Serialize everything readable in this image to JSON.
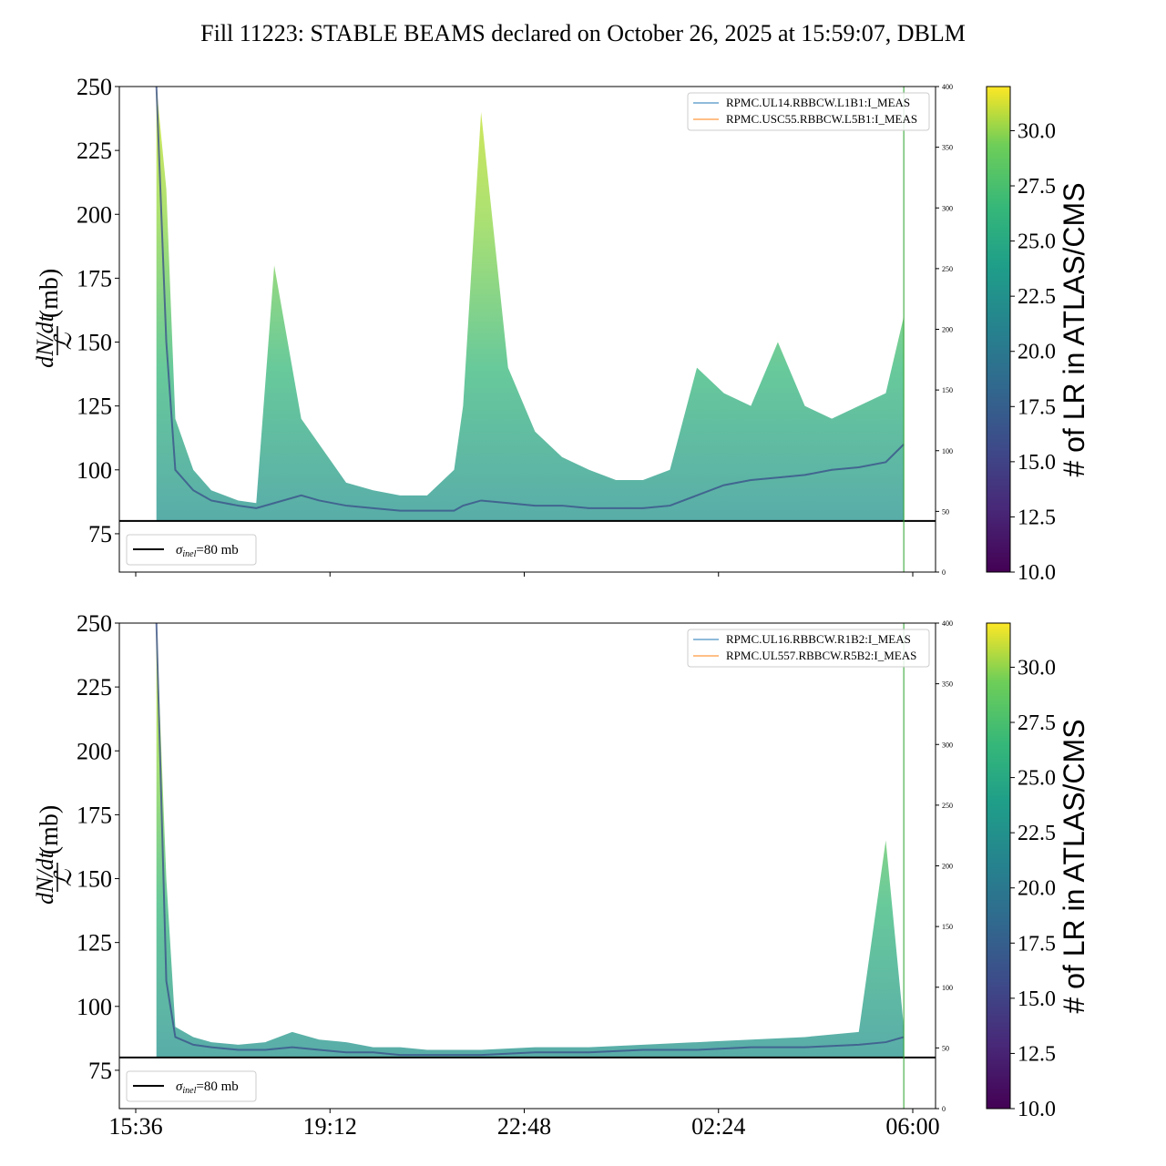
{
  "title": "Fill 11223: STABLE BEAMS declared on October 26, 2025 at 15:59:07, DBLM",
  "ylabel": {
    "numerator": "dN/dt",
    "denominator": "ℒ",
    "unit": "(mb)"
  },
  "colorbar": {
    "label": "# of LR in ATLAS/CMS",
    "ticks": [
      "10.0",
      "12.5",
      "15.0",
      "17.5",
      "20.0",
      "22.5",
      "25.0",
      "27.5",
      "30.0"
    ],
    "range": [
      10.0,
      32.0
    ],
    "colormap": "viridis"
  },
  "sigma_legend": {
    "label_prefix": "σ",
    "label_sub": "inel",
    "label_suffix": "=80 mb"
  },
  "colors": {
    "blue_series": "#1f77b4",
    "orange_series": "#ff7f0e",
    "green_vline": "#2ca02c",
    "reference": "#000000"
  },
  "chart_data": [
    {
      "type": "line",
      "panel": "top",
      "ylim": [
        60,
        250
      ],
      "yticks": [
        "75",
        "100",
        "125",
        "150",
        "175",
        "200",
        "225",
        "250"
      ],
      "y2lim": [
        0,
        400
      ],
      "y2ticks": [
        "0",
        "50",
        "100",
        "150",
        "200",
        "250",
        "300",
        "350",
        "400"
      ],
      "xticks": [
        "15:36",
        "19:12",
        "22:48",
        "02:24",
        "06:00"
      ],
      "show_xtick_labels": false,
      "reference_line": 80,
      "vertical_line_time": "05:50",
      "legend": [
        "RPMC.UL14.RBBCW.L1B1:I_MEAS",
        "RPMC.USC55.RBBCW.L5B1:I_MEAS"
      ],
      "series_baseline": {
        "x": [
          "15:59",
          "16:10",
          "16:20",
          "16:40",
          "17:00",
          "17:30",
          "17:50",
          "18:10",
          "18:40",
          "19:00",
          "19:30",
          "20:00",
          "20:30",
          "21:00",
          "21:30",
          "21:40",
          "22:00",
          "22:30",
          "23:00",
          "23:30",
          "00:00",
          "00:30",
          "01:00",
          "01:30",
          "02:00",
          "02:30",
          "03:00",
          "03:30",
          "04:00",
          "04:30",
          "05:00",
          "05:30",
          "05:50"
        ],
        "y": [
          250,
          150,
          100,
          92,
          88,
          86,
          85,
          87,
          90,
          88,
          86,
          85,
          84,
          84,
          84,
          86,
          88,
          87,
          86,
          86,
          85,
          85,
          85,
          86,
          90,
          94,
          96,
          97,
          98,
          100,
          101,
          103,
          110
        ]
      },
      "series_envelope": {
        "x": [
          "15:59",
          "16:10",
          "16:20",
          "16:40",
          "17:00",
          "17:30",
          "17:50",
          "18:10",
          "18:40",
          "19:00",
          "19:30",
          "20:00",
          "20:30",
          "21:00",
          "21:30",
          "21:40",
          "22:00",
          "22:30",
          "23:00",
          "23:30",
          "00:00",
          "00:30",
          "01:00",
          "01:30",
          "02:00",
          "02:30",
          "03:00",
          "03:30",
          "04:00",
          "04:30",
          "05:00",
          "05:30",
          "05:50"
        ],
        "y": [
          250,
          210,
          120,
          100,
          92,
          88,
          87,
          180,
          120,
          110,
          95,
          92,
          90,
          90,
          100,
          125,
          240,
          140,
          115,
          105,
          100,
          96,
          96,
          100,
          140,
          130,
          125,
          150,
          125,
          120,
          125,
          130,
          160
        ]
      }
    },
    {
      "type": "line",
      "panel": "bottom",
      "ylim": [
        60,
        250
      ],
      "yticks": [
        "75",
        "100",
        "125",
        "150",
        "175",
        "200",
        "225",
        "250"
      ],
      "y2lim": [
        0,
        400
      ],
      "y2ticks": [
        "0",
        "50",
        "100",
        "150",
        "200",
        "250",
        "300",
        "350",
        "400"
      ],
      "xticks": [
        "15:36",
        "19:12",
        "22:48",
        "02:24",
        "06:00"
      ],
      "show_xtick_labels": true,
      "reference_line": 80,
      "vertical_line_time": "05:50",
      "legend": [
        "RPMC.UL16.RBBCW.R1B2:I_MEAS",
        "RPMC.UL557.RBBCW.R5B2:I_MEAS"
      ],
      "series_baseline": {
        "x": [
          "15:59",
          "16:10",
          "16:20",
          "16:40",
          "17:00",
          "17:30",
          "18:00",
          "18:30",
          "19:00",
          "19:30",
          "20:00",
          "20:30",
          "21:00",
          "22:00",
          "23:00",
          "00:00",
          "01:00",
          "02:00",
          "03:00",
          "04:00",
          "05:00",
          "05:30",
          "05:50"
        ],
        "y": [
          250,
          110,
          88,
          85,
          84,
          83,
          83,
          84,
          83,
          82,
          82,
          81,
          81,
          81,
          82,
          82,
          83,
          83,
          84,
          84,
          85,
          86,
          88
        ]
      },
      "series_envelope": {
        "x": [
          "15:59",
          "16:10",
          "16:20",
          "16:40",
          "17:00",
          "17:30",
          "18:00",
          "18:30",
          "19:00",
          "19:30",
          "20:00",
          "20:30",
          "21:00",
          "22:00",
          "23:00",
          "00:00",
          "01:00",
          "02:00",
          "03:00",
          "04:00",
          "05:00",
          "05:30",
          "05:50"
        ],
        "y": [
          250,
          150,
          92,
          88,
          86,
          85,
          86,
          90,
          87,
          86,
          84,
          84,
          83,
          83,
          84,
          84,
          85,
          86,
          87,
          88,
          90,
          165,
          92
        ]
      }
    }
  ]
}
